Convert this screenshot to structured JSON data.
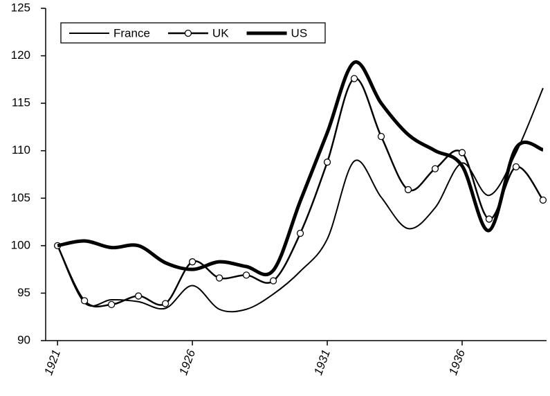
{
  "chart_data": {
    "type": "line",
    "x": [
      1921,
      1922,
      1923,
      1924,
      1925,
      1926,
      1927,
      1928,
      1929,
      1930,
      1931,
      1932,
      1933,
      1934,
      1935,
      1936,
      1937,
      1938,
      1939
    ],
    "series": [
      {
        "name": "France",
        "color": "#000000",
        "width": 2,
        "marker": false,
        "values": [
          100,
          94.0,
          94.3,
          94.1,
          93.4,
          95.8,
          93.3,
          93.3,
          94.9,
          97.3,
          100.7,
          108.9,
          105.1,
          101.8,
          104.0,
          108.7,
          105.3,
          109.8,
          116.6
        ]
      },
      {
        "name": "UK",
        "color": "#000000",
        "width": 2.5,
        "marker": true,
        "values": [
          100,
          94.2,
          93.8,
          94.7,
          93.9,
          98.3,
          96.6,
          96.9,
          96.3,
          101.3,
          108.8,
          117.6,
          111.5,
          105.9,
          108.1,
          109.8,
          102.8,
          108.3,
          104.8
        ]
      },
      {
        "name": "US",
        "color": "#000000",
        "width": 5,
        "marker": false,
        "values": [
          100,
          100.5,
          99.8,
          100,
          98.2,
          97.5,
          98.3,
          97.8,
          97.4,
          104.7,
          111.9,
          119.3,
          115.0,
          111.7,
          110.0,
          108.4,
          101.6,
          110.3,
          110.1
        ]
      }
    ],
    "xlim": [
      1920.56,
      1939.13
    ],
    "xticks": [
      1921,
      1926,
      1931,
      1936
    ],
    "ylim": [
      90,
      125
    ],
    "yticks": [
      90,
      95,
      100,
      105,
      110,
      115,
      120,
      125
    ],
    "legend": "upper left"
  }
}
